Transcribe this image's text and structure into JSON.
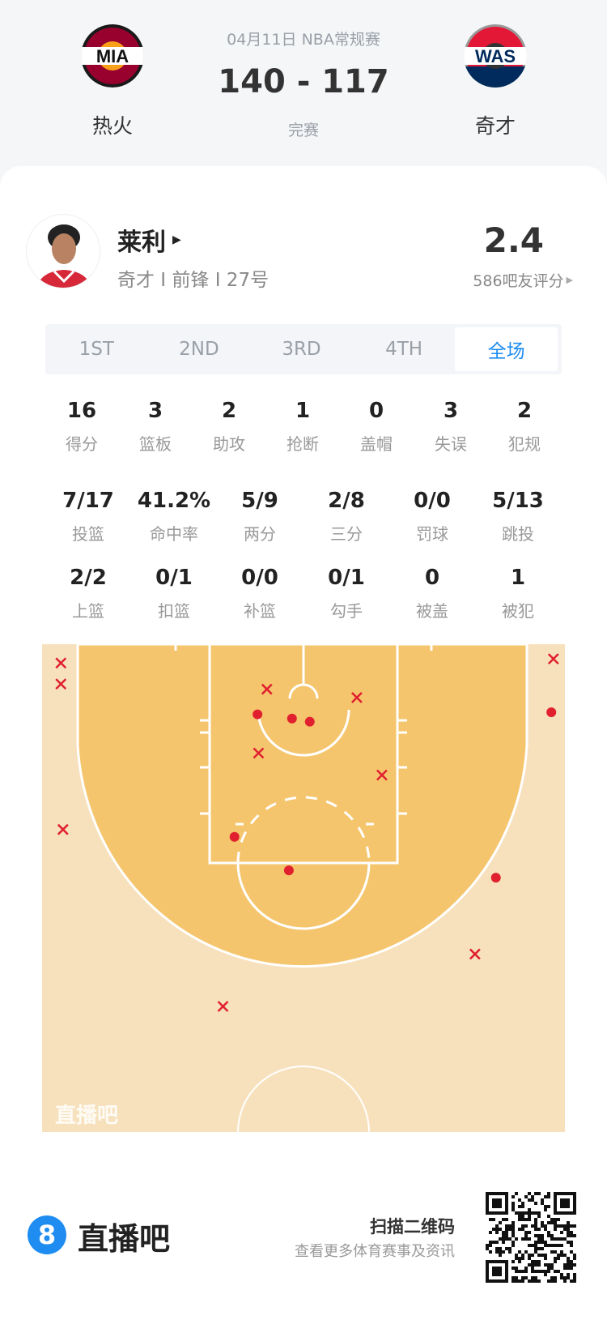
{
  "match": {
    "date_league": "04月11日 NBA常规赛",
    "score": "140 - 117",
    "status": "完赛",
    "home": {
      "abbr": "MIA",
      "name": "热火",
      "color": "#98002e"
    },
    "away": {
      "abbr": "WAS",
      "name": "奇才",
      "color": "#002b5c"
    }
  },
  "player": {
    "name": "莱利",
    "info": "奇才 I 前锋 I 27号",
    "rating": "2.4",
    "rating_label": "586吧友评分"
  },
  "tabs": [
    {
      "label": "1ST"
    },
    {
      "label": "2ND"
    },
    {
      "label": "3RD"
    },
    {
      "label": "4TH"
    },
    {
      "label": "全场",
      "active": true
    }
  ],
  "stats_row1": [
    {
      "v": "16",
      "l": "得分"
    },
    {
      "v": "3",
      "l": "篮板"
    },
    {
      "v": "2",
      "l": "助攻"
    },
    {
      "v": "1",
      "l": "抢断"
    },
    {
      "v": "0",
      "l": "盖帽"
    },
    {
      "v": "3",
      "l": "失误"
    },
    {
      "v": "2",
      "l": "犯规"
    }
  ],
  "stats_row2": [
    {
      "v": "7/17",
      "l": "投篮"
    },
    {
      "v": "41.2%",
      "l": "命中率"
    },
    {
      "v": "5/9",
      "l": "两分"
    },
    {
      "v": "2/8",
      "l": "三分"
    },
    {
      "v": "0/0",
      "l": "罚球"
    },
    {
      "v": "5/13",
      "l": "跳投"
    }
  ],
  "stats_row3": [
    {
      "v": "2/2",
      "l": "上篮"
    },
    {
      "v": "0/1",
      "l": "扣篮"
    },
    {
      "v": "0/0",
      "l": "补篮"
    },
    {
      "v": "0/1",
      "l": "勾手"
    },
    {
      "v": "0",
      "l": "被盖"
    },
    {
      "v": "1",
      "l": "被犯"
    }
  ],
  "shot_chart": {
    "watermark": "直播吧",
    "colors": {
      "make": "#e0202e",
      "miss": "#e0202e",
      "paint": "#f5c56e",
      "floor": "#f7e1bd",
      "accent": "#1e8cf0"
    },
    "shots_ft_from_baseline_center": [
      {
        "x": -23.2,
        "y": 1.8,
        "made": false
      },
      {
        "x": -23.2,
        "y": 3.8,
        "made": false
      },
      {
        "x": -3.5,
        "y": 4.3,
        "made": false
      },
      {
        "x": 5.1,
        "y": 5.1,
        "made": false
      },
      {
        "x": -4.3,
        "y": 10.4,
        "made": false
      },
      {
        "x": 7.5,
        "y": 12.5,
        "made": false
      },
      {
        "x": -23.0,
        "y": 17.7,
        "made": false
      },
      {
        "x": 23.9,
        "y": 1.4,
        "made": false
      },
      {
        "x": 16.4,
        "y": 29.6,
        "made": false
      },
      {
        "x": -7.7,
        "y": 34.6,
        "made": false
      },
      {
        "x": -4.4,
        "y": 6.7,
        "made": true
      },
      {
        "x": -1.1,
        "y": 7.1,
        "made": true
      },
      {
        "x": 0.6,
        "y": 7.4,
        "made": true
      },
      {
        "x": 23.7,
        "y": 6.5,
        "made": true
      },
      {
        "x": -6.6,
        "y": 18.4,
        "made": true
      },
      {
        "x": -1.4,
        "y": 21.6,
        "made": true
      },
      {
        "x": 18.4,
        "y": 22.3,
        "made": true
      }
    ]
  },
  "footer": {
    "brand_icon": "8",
    "brand": "直播吧",
    "scan_title": "扫描二维码",
    "scan_sub": "查看更多体育赛事及资讯"
  }
}
